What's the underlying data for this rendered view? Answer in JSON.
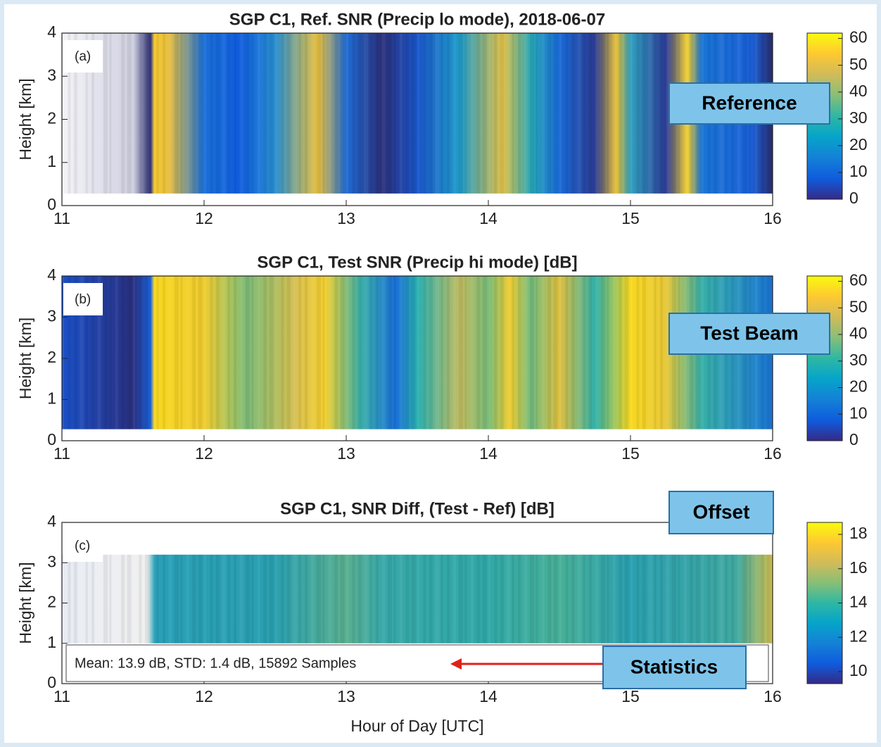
{
  "chart_data": [
    {
      "type": "heatmap",
      "title": "SGP C1, Ref. SNR (Precip lo mode), 2018-06-07",
      "panel_label": "(a)",
      "ylabel": "Height [km]",
      "xlim": [
        11,
        16
      ],
      "xticks": [
        11,
        12,
        13,
        14,
        15,
        16
      ],
      "ylim": [
        0,
        4
      ],
      "yticks": [
        0,
        1,
        2,
        3,
        4
      ],
      "colorbar": {
        "lim": [
          0,
          62
        ],
        "ticks": [
          0,
          10,
          20,
          30,
          40,
          50,
          60
        ]
      },
      "annotation": "Reference"
    },
    {
      "type": "heatmap",
      "title": "SGP C1, Test SNR (Precip hi mode) [dB]",
      "panel_label": "(b)",
      "ylabel": "Height [km]",
      "xlim": [
        11,
        16
      ],
      "xticks": [
        11,
        12,
        13,
        14,
        15,
        16
      ],
      "ylim": [
        0,
        4
      ],
      "yticks": [
        0,
        1,
        2,
        3,
        4
      ],
      "colorbar": {
        "lim": [
          0,
          62
        ],
        "ticks": [
          0,
          10,
          20,
          30,
          40,
          50,
          60
        ]
      },
      "annotation": "Test Beam"
    },
    {
      "type": "heatmap",
      "title": "SGP C1, SNR Diff, (Test - Ref) [dB]",
      "panel_label": "(c)",
      "ylabel": "Height [km]",
      "xlabel": "Hour of Day [UTC]",
      "xlim": [
        11,
        16
      ],
      "xticks": [
        11,
        12,
        13,
        14,
        15,
        16
      ],
      "ylim": [
        0,
        4
      ],
      "yticks": [
        0,
        1,
        2,
        3,
        4
      ],
      "colorbar": {
        "lim": [
          9.3,
          18.7
        ],
        "ticks": [
          10,
          12,
          14,
          16,
          18
        ]
      },
      "annotation": "Offset",
      "stats": "Mean: 13.9 dB,  STD: 1.4 dB, 15892 Samples",
      "stats_annotation": "Statistics"
    }
  ]
}
